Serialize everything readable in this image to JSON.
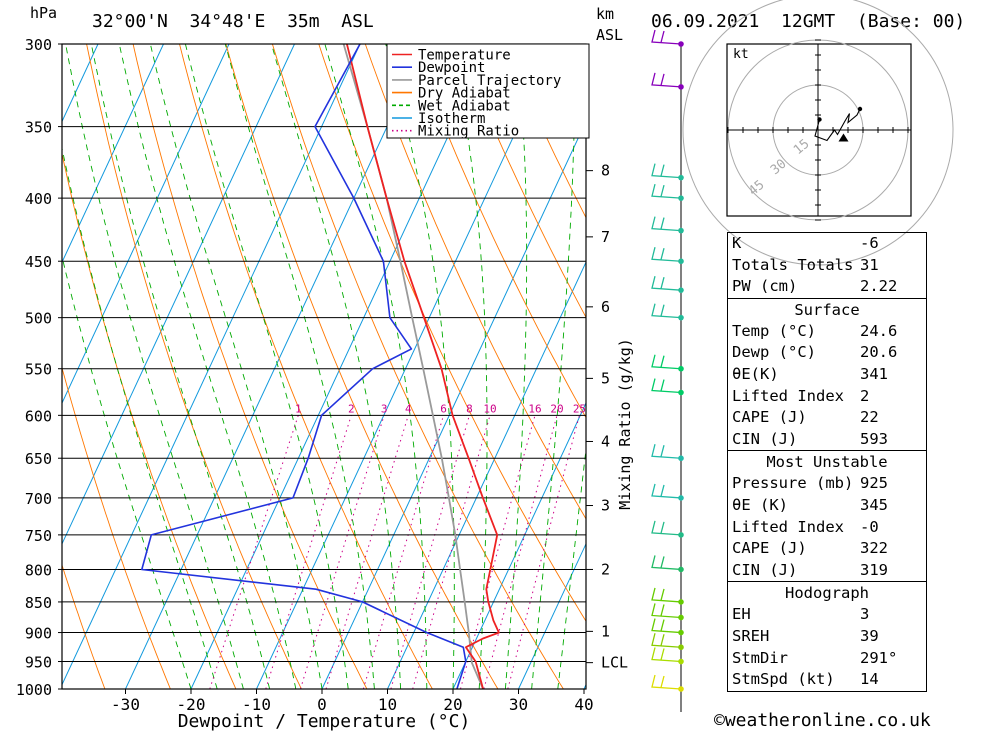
{
  "header": {
    "hpa_unit": "hPa",
    "location": "32°00'N  34°48'E  35m  ASL",
    "km_unit": "km",
    "asl_unit": "ASL",
    "datetime": "06.09.2021  12GMT  (Base: 00)"
  },
  "chart_data": {
    "type": "skew-t",
    "title": "32°00'N  34°48'E  35m  ASL",
    "xlabel": "Dewpoint / Temperature (°C)",
    "ylabel": "hPa",
    "mixing_ratio_axis_label": "Mixing Ratio (g/kg)",
    "xlim": [
      -40,
      40
    ],
    "ylim": [
      1000,
      300
    ],
    "pressure_ticks": [
      300,
      350,
      400,
      450,
      500,
      550,
      600,
      650,
      700,
      750,
      800,
      850,
      900,
      950,
      1000
    ],
    "temperature_ticks": [
      -30,
      -20,
      -10,
      0,
      10,
      20,
      30,
      40
    ],
    "km_ticks": [
      {
        "label": "8",
        "p": 380
      },
      {
        "label": "7",
        "p": 430
      },
      {
        "label": "6",
        "p": 490
      },
      {
        "label": "5",
        "p": 560
      },
      {
        "label": "4",
        "p": 630
      },
      {
        "label": "3",
        "p": 710
      },
      {
        "label": "2",
        "p": 800
      },
      {
        "label": "1",
        "p": 898
      },
      {
        "label": "LCL",
        "p": 952
      }
    ],
    "mixing_ratio_labels": [
      "1",
      "2",
      "3",
      "4",
      "6",
      "8",
      "10",
      "16",
      "20",
      "25"
    ],
    "mixing_ratio_values": [
      1,
      2,
      3,
      4,
      6,
      8,
      10,
      16,
      20,
      25
    ],
    "legend": [
      {
        "name": "Temperature",
        "color": "#ee2222",
        "style": "solid"
      },
      {
        "name": "Dewpoint",
        "color": "#2233dd",
        "style": "solid"
      },
      {
        "name": "Parcel Trajectory",
        "color": "#9a9a9a",
        "style": "solid"
      },
      {
        "name": "Dry Adiabat",
        "color": "#ff7700",
        "style": "solid"
      },
      {
        "name": "Wet Adiabat",
        "color": "#00aa00",
        "style": "dashed"
      },
      {
        "name": "Isotherm",
        "color": "#1199dd",
        "style": "solid"
      },
      {
        "name": "Mixing Ratio",
        "color": "#cc0088",
        "style": "dotted"
      }
    ],
    "series": [
      {
        "name": "Temperature",
        "points": [
          [
            1000,
            24.6
          ],
          [
            950,
            21.5
          ],
          [
            925,
            19.0
          ],
          [
            910,
            21.0
          ],
          [
            900,
            23.0
          ],
          [
            880,
            21.3
          ],
          [
            850,
            19.2
          ],
          [
            830,
            18.0
          ],
          [
            800,
            17.2
          ],
          [
            750,
            15.8
          ],
          [
            700,
            11.0
          ],
          [
            650,
            6.0
          ],
          [
            600,
            0.5
          ],
          [
            550,
            -4.5
          ],
          [
            500,
            -10.8
          ],
          [
            450,
            -17.8
          ],
          [
            400,
            -25.0
          ],
          [
            350,
            -33.0
          ],
          [
            300,
            -42.0
          ]
        ]
      },
      {
        "name": "Dewpoint",
        "points": [
          [
            1000,
            20.6
          ],
          [
            950,
            20.0
          ],
          [
            925,
            18.6
          ],
          [
            900,
            12.0
          ],
          [
            850,
            0.0
          ],
          [
            830,
            -8.0
          ],
          [
            800,
            -36.0
          ],
          [
            750,
            -37.0
          ],
          [
            700,
            -18.0
          ],
          [
            650,
            -18.5
          ],
          [
            600,
            -19.5
          ],
          [
            550,
            -15.0
          ],
          [
            530,
            -10.5
          ],
          [
            500,
            -16.0
          ],
          [
            450,
            -21.0
          ],
          [
            400,
            -30.0
          ],
          [
            350,
            -41.0
          ],
          [
            300,
            -40.0
          ]
        ]
      },
      {
        "name": "Parcel Trajectory",
        "points": [
          [
            1000,
            24.6
          ],
          [
            952,
            21.0
          ],
          [
            900,
            18.4
          ],
          [
            850,
            15.6
          ],
          [
            800,
            12.6
          ],
          [
            750,
            9.4
          ],
          [
            700,
            5.8
          ],
          [
            650,
            1.9
          ],
          [
            600,
            -2.5
          ],
          [
            550,
            -7.3
          ],
          [
            500,
            -12.6
          ],
          [
            450,
            -18.4
          ],
          [
            400,
            -25.0
          ],
          [
            350,
            -33.0
          ],
          [
            300,
            -42.5
          ]
        ]
      }
    ],
    "wind_barbs": [
      {
        "p": 1000,
        "color": "#dddd00"
      },
      {
        "p": 950,
        "color": "#aadd00"
      },
      {
        "p": 925,
        "color": "#88cc00"
      },
      {
        "p": 900,
        "color": "#66cc00"
      },
      {
        "p": 875,
        "color": "#66cc00"
      },
      {
        "p": 850,
        "color": "#66cc00"
      },
      {
        "p": 800,
        "color": "#22bb66"
      },
      {
        "p": 750,
        "color": "#22bb88"
      },
      {
        "p": 700,
        "color": "#22bbaa"
      },
      {
        "p": 650,
        "color": "#22bbaa"
      },
      {
        "p": 575,
        "color": "#00cc66"
      },
      {
        "p": 550,
        "color": "#00cc66"
      },
      {
        "p": 500,
        "color": "#22bb99"
      },
      {
        "p": 475,
        "color": "#22bb99"
      },
      {
        "p": 450,
        "color": "#22bb99"
      },
      {
        "p": 425,
        "color": "#22bb99"
      },
      {
        "p": 400,
        "color": "#22bb99"
      },
      {
        "p": 385,
        "color": "#22bb99"
      },
      {
        "p": 325,
        "color": "#8800bb"
      },
      {
        "p": 300,
        "color": "#8800bb"
      }
    ],
    "hodograph": {
      "unit_label": "kt",
      "ring_labels": [
        "15",
        "30",
        "45"
      ],
      "path_uv": [
        [
          0.5,
          3.5
        ],
        [
          -1.0,
          -2.0
        ],
        [
          3.0,
          -3.5
        ],
        [
          5.5,
          0.0
        ],
        [
          6.5,
          -1.5
        ],
        [
          9.0,
          3.0
        ],
        [
          10.5,
          5.5
        ],
        [
          10.0,
          2.5
        ],
        [
          13.0,
          5.0
        ],
        [
          14.0,
          7.0
        ]
      ],
      "storm_motion_uv": [
        8.5,
        -2.5
      ]
    }
  },
  "indices": {
    "general": [
      {
        "label": "K",
        "value": "-6"
      },
      {
        "label": "Totals Totals",
        "value": "31"
      },
      {
        "label": "PW (cm)",
        "value": "2.22"
      }
    ],
    "surface": {
      "title": "Surface",
      "rows": [
        {
          "label": "Temp (°C)",
          "value": "24.6"
        },
        {
          "label": "Dewp (°C)",
          "value": "20.6"
        },
        {
          "label": "θE(K)",
          "value": "341"
        },
        {
          "label": "Lifted Index",
          "value": "2"
        },
        {
          "label": "CAPE (J)",
          "value": "22"
        },
        {
          "label": "CIN (J)",
          "value": "593"
        }
      ]
    },
    "most_unstable": {
      "title": "Most Unstable",
      "rows": [
        {
          "label": "Pressure (mb)",
          "value": "925"
        },
        {
          "label": "θE (K)",
          "value": "345"
        },
        {
          "label": "Lifted Index",
          "value": "-0"
        },
        {
          "label": "CAPE (J)",
          "value": "322"
        },
        {
          "label": "CIN (J)",
          "value": "319"
        }
      ]
    },
    "hodograph": {
      "title": "Hodograph",
      "rows": [
        {
          "label": "EH",
          "value": "3"
        },
        {
          "label": "SREH",
          "value": "39"
        },
        {
          "label": "StmDir",
          "value": "291°"
        },
        {
          "label": "StmSpd (kt)",
          "value": "14"
        }
      ]
    }
  },
  "footer": {
    "copyright": "©weatheronline.co.uk"
  }
}
